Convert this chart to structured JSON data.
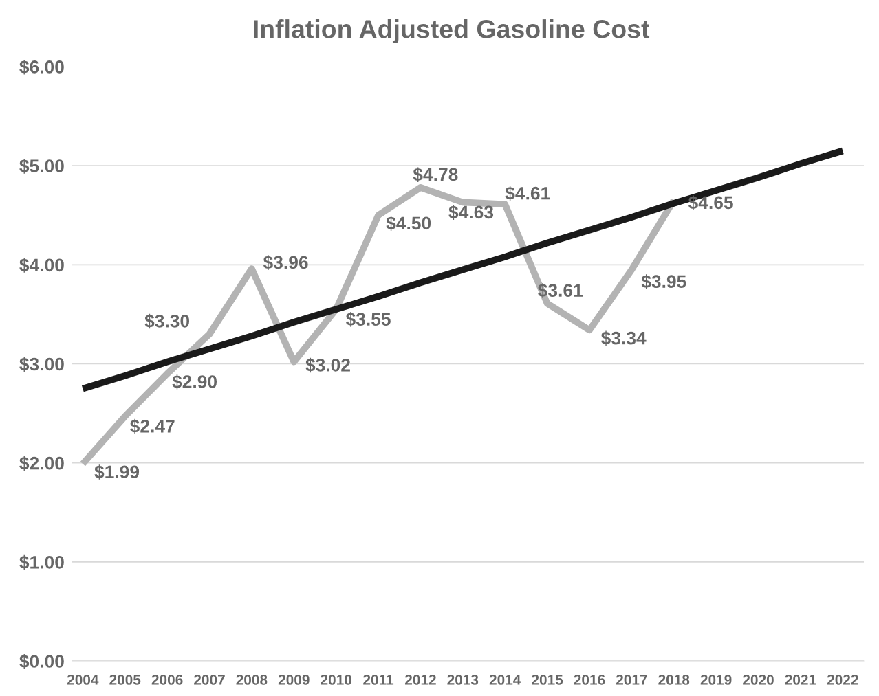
{
  "chart_data": {
    "type": "line",
    "title": "Inflation Adjusted Gasoline Cost",
    "categories": [
      "2004",
      "2005",
      "2006",
      "2007",
      "2008",
      "2009",
      "2010",
      "2011",
      "2012",
      "2013",
      "2014",
      "2015",
      "2016",
      "2017",
      "2018",
      "2019",
      "2020",
      "2021",
      "2022"
    ],
    "series": [
      {
        "color": "#b3b3b3",
        "values": [
          1.99,
          2.47,
          2.9,
          3.3,
          3.96,
          3.02,
          3.55,
          4.5,
          4.78,
          4.63,
          4.61,
          3.61,
          3.34,
          3.95,
          4.65,
          null,
          null,
          null,
          null
        ],
        "value_labels": [
          "$1.99",
          "$2.47",
          "$2.90",
          "$3.30",
          "$3.96",
          "$3.02",
          "$3.55",
          "$4.50",
          "$4.78",
          "$4.63",
          "$4.61",
          "$3.61",
          "$3.34",
          "$3.95",
          "$4.65",
          null,
          null,
          null,
          null
        ]
      },
      {
        "type": "line",
        "color": "#1a1a1a",
        "values": [
          2.75,
          2.88,
          3.02,
          3.15,
          3.28,
          3.42,
          3.55,
          3.68,
          3.82,
          3.95,
          4.08,
          4.22,
          4.35,
          4.48,
          4.62,
          4.75,
          4.88,
          5.02,
          5.15
        ]
      }
    ],
    "ylim": [
      0,
      6
    ],
    "yticks": [
      {
        "value": 0,
        "label": "$0.00"
      },
      {
        "value": 1,
        "label": "$1.00"
      },
      {
        "value": 2,
        "label": "$2.00"
      },
      {
        "value": 3,
        "label": "$3.00"
      },
      {
        "value": 4,
        "label": "$4.00"
      },
      {
        "value": 5,
        "label": "$5.00"
      },
      {
        "value": 6,
        "label": "$6.00"
      }
    ],
    "grid": "y",
    "legend": false,
    "marker": "none",
    "line_style": "solid"
  }
}
